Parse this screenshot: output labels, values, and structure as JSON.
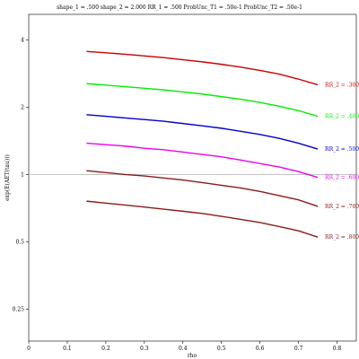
{
  "chart_data": {
    "type": "line",
    "title": "shape_1 = .500  shape_2 = 2.000  RR_1 = .500  ProbUnc_T1 = .50e-1  ProbUnc_T2 = .50e-1",
    "xlabel": "rho",
    "ylabel": "exp(E(AET(tau)))",
    "xlim": [
      0,
      0.85
    ],
    "ylim": [
      0.18,
      5.2
    ],
    "y_scale": "log",
    "x_ticks": [
      0,
      0.1,
      0.2,
      0.3,
      0.4,
      0.5,
      0.6,
      0.7,
      0.8
    ],
    "x_tick_labels": [
      "0",
      "0.1",
      "0.2",
      "0.3",
      "0.4",
      "0.5",
      "0.6",
      "0.7",
      "0.8"
    ],
    "y_ticks": [
      0.25,
      0.5,
      1,
      2,
      4
    ],
    "y_tick_labels": [
      "0.25",
      "0.5",
      "1",
      "2",
      "4"
    ],
    "reference_line_y": 1,
    "grid": false,
    "x": [
      0.15,
      0.2,
      0.25,
      0.3,
      0.35,
      0.4,
      0.45,
      0.5,
      0.55,
      0.6,
      0.65,
      0.7,
      0.75
    ],
    "series": [
      {
        "name": "RR_2 = .300",
        "color": "#cc0000",
        "values": [
          3.55,
          3.5,
          3.45,
          3.39,
          3.33,
          3.26,
          3.19,
          3.11,
          3.02,
          2.92,
          2.81,
          2.67,
          2.52
        ]
      },
      {
        "name": "RR_2 = .400",
        "color": "#00ee00",
        "values": [
          2.55,
          2.51,
          2.47,
          2.43,
          2.39,
          2.34,
          2.29,
          2.23,
          2.17,
          2.1,
          2.02,
          1.93,
          1.82
        ]
      },
      {
        "name": "RR_2 = .500",
        "color": "#0000cc",
        "values": [
          1.85,
          1.82,
          1.79,
          1.76,
          1.73,
          1.69,
          1.65,
          1.61,
          1.56,
          1.51,
          1.45,
          1.38,
          1.3
        ]
      },
      {
        "name": "RR_2 = .600",
        "color": "#ee00ee",
        "values": [
          1.38,
          1.36,
          1.34,
          1.31,
          1.29,
          1.26,
          1.23,
          1.2,
          1.16,
          1.12,
          1.08,
          1.03,
          0.97
        ]
      },
      {
        "name": "RR_2 = .700",
        "color": "#8b1a1a",
        "values": [
          1.04,
          1.02,
          1.0,
          0.985,
          0.965,
          0.945,
          0.92,
          0.895,
          0.87,
          0.84,
          0.805,
          0.77,
          0.72
        ]
      },
      {
        "name": "RR_2 = .800",
        "color": "#8b1a1a",
        "values": [
          0.76,
          0.745,
          0.73,
          0.715,
          0.7,
          0.685,
          0.67,
          0.65,
          0.63,
          0.61,
          0.585,
          0.56,
          0.525
        ]
      }
    ]
  }
}
